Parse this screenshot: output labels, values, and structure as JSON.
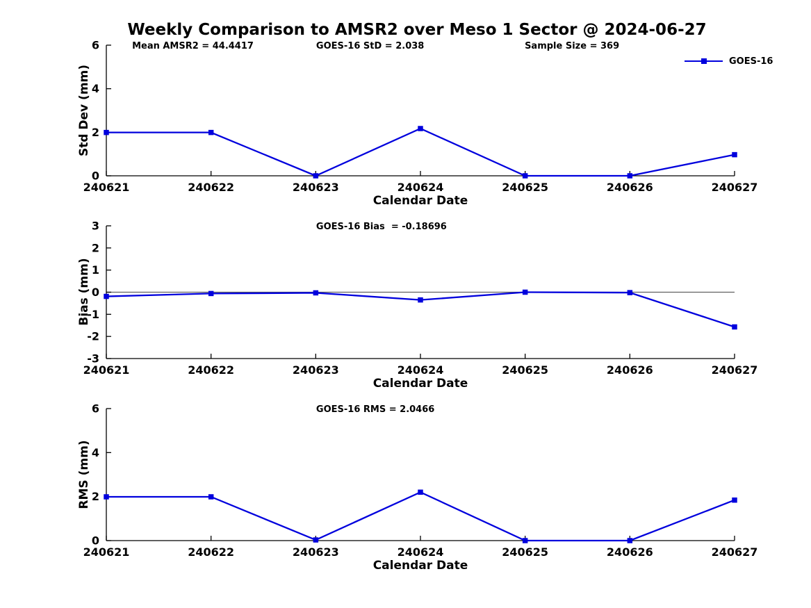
{
  "title": "Weekly Comparison to AMSR2 over Meso 1 Sector @ 2024-06-27",
  "legend": {
    "label": "GOES-16",
    "marker": "square-icon"
  },
  "colors": {
    "line": "#0000DD",
    "axis": "#000000",
    "zero_line": "#606060",
    "text": "#000000",
    "background": "#FFFFFF"
  },
  "chart_data": [
    {
      "type": "line",
      "panel": "std-dev",
      "title": "",
      "xlabel": "Calendar Date",
      "ylabel": "Std Dev (mm)",
      "annotations": [
        "Mean AMSR2 = 44.4417",
        "GOES-16 StD = 2.038",
        "Sample Size = 369"
      ],
      "categories": [
        "240621",
        "240622",
        "240623",
        "240624",
        "240625",
        "240626",
        "240627"
      ],
      "series": [
        {
          "name": "GOES-16",
          "values": [
            1.99,
            1.99,
            0.0,
            2.17,
            0.0,
            0.0,
            0.97
          ]
        }
      ],
      "ylim": [
        0,
        6
      ],
      "yticks": [
        0,
        2,
        4,
        6
      ],
      "grid": false,
      "legend_position": "top-right",
      "zero_line": false
    },
    {
      "type": "line",
      "panel": "bias",
      "title": "",
      "xlabel": "Calendar Date",
      "ylabel": "Bias (mm)",
      "annotations": [
        "GOES-16 Bias  = -0.18696"
      ],
      "categories": [
        "240621",
        "240622",
        "240623",
        "240624",
        "240625",
        "240626",
        "240627"
      ],
      "series": [
        {
          "name": "GOES-16",
          "values": [
            -0.19,
            -0.06,
            -0.03,
            -0.35,
            0.0,
            -0.02,
            -1.57
          ]
        }
      ],
      "ylim": [
        -3,
        3
      ],
      "yticks": [
        -3,
        -2,
        -1,
        0,
        1,
        2,
        3
      ],
      "grid": false,
      "legend_position": "none",
      "zero_line": true
    },
    {
      "type": "line",
      "panel": "rms",
      "title": "",
      "xlabel": "Calendar Date",
      "ylabel": "RMS (mm)",
      "annotations": [
        "GOES-16 RMS = 2.0466"
      ],
      "categories": [
        "240621",
        "240622",
        "240623",
        "240624",
        "240625",
        "240626",
        "240627"
      ],
      "series": [
        {
          "name": "GOES-16",
          "values": [
            1.99,
            1.99,
            0.03,
            2.2,
            0.0,
            0.0,
            1.84
          ]
        }
      ],
      "ylim": [
        0,
        6
      ],
      "yticks": [
        0,
        2,
        4,
        6
      ],
      "grid": false,
      "legend_position": "none",
      "zero_line": false
    }
  ]
}
